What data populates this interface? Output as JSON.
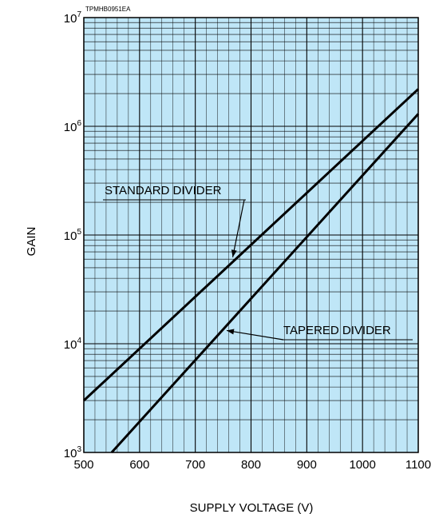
{
  "chart_data": {
    "type": "line",
    "code": "TPMHB0951EA",
    "xlabel": "SUPPLY VOLTAGE (V)",
    "ylabel": "GAIN",
    "xlim": [
      500,
      1100
    ],
    "ylim": [
      1000,
      10000000
    ],
    "yscale": "log",
    "grid": true,
    "background_color": "#bfe6f7",
    "line_color": "#000000",
    "x_ticks": [
      500,
      600,
      700,
      800,
      900,
      1000,
      1100
    ],
    "x_tick_labels": [
      "500",
      "600",
      "700",
      "800",
      "900",
      "1000",
      "1100"
    ],
    "y_ticks": [
      {
        "value": 1000,
        "base": "10",
        "exp": "3"
      },
      {
        "value": 10000,
        "base": "10",
        "exp": "4"
      },
      {
        "value": 100000,
        "base": "10",
        "exp": "5"
      },
      {
        "value": 1000000,
        "base": "10",
        "exp": "6"
      },
      {
        "value": 10000000,
        "base": "10",
        "exp": "7"
      }
    ],
    "series": [
      {
        "name": "STANDARD DIVIDER",
        "x": [
          500,
          1100
        ],
        "y": [
          3000,
          2200000
        ]
      },
      {
        "name": "TAPERED DIVIDER",
        "x": [
          550,
          1100
        ],
        "y": [
          1000,
          1300000
        ]
      }
    ],
    "annotations": [
      {
        "text": "STANDARD DIVIDER",
        "series": 0,
        "x": 770
      },
      {
        "text": "TAPERED DIVIDER",
        "series": 1,
        "x": 752
      }
    ]
  }
}
